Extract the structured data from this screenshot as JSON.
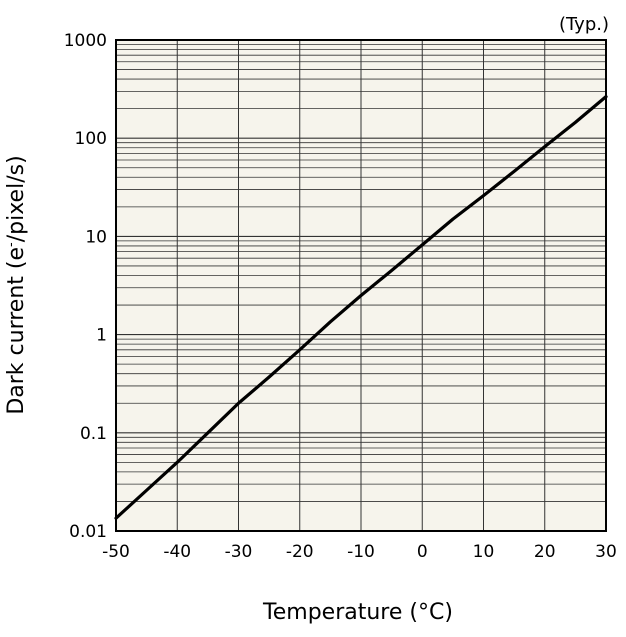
{
  "chart_data": {
    "type": "line",
    "title": "",
    "annotation": "(Typ.)",
    "xlabel": "Temperature (°C)",
    "ylabel_main": "Dark current (e",
    "ylabel_sup": "-",
    "ylabel_tail": "/pixel/s)",
    "xlim": [
      -50,
      30
    ],
    "ylim": [
      0.01,
      1000
    ],
    "y_scale": "log",
    "grid": true,
    "x_ticks": [
      {
        "value": -50,
        "label": "-50"
      },
      {
        "value": -40,
        "label": "-40"
      },
      {
        "value": -30,
        "label": "-30"
      },
      {
        "value": -20,
        "label": "-20"
      },
      {
        "value": -10,
        "label": "-10"
      },
      {
        "value": 0,
        "label": "0"
      },
      {
        "value": 10,
        "label": "10"
      },
      {
        "value": 20,
        "label": "20"
      },
      {
        "value": 30,
        "label": "30"
      }
    ],
    "y_ticks": [
      {
        "value": 0.01,
        "label": "0.01"
      },
      {
        "value": 0.1,
        "label": "0.1"
      },
      {
        "value": 1,
        "label": "1"
      },
      {
        "value": 10,
        "label": "10"
      },
      {
        "value": 100,
        "label": "100"
      },
      {
        "value": 1000,
        "label": "1000"
      }
    ],
    "series": [
      {
        "x": [
          -50,
          -45,
          -40,
          -35,
          -30,
          -25,
          -20,
          -15,
          -10,
          -5,
          0,
          5,
          10,
          15,
          20,
          25,
          30
        ],
        "y": [
          0.0135,
          0.026,
          0.05,
          0.1,
          0.2,
          0.37,
          0.7,
          1.35,
          2.5,
          4.5,
          8.2,
          15,
          26,
          46,
          82,
          145,
          265
        ]
      }
    ],
    "colors": {
      "plot_background": "#f6f4ec",
      "grid": "#333333",
      "line": "#000000",
      "frame": "#000000"
    }
  }
}
